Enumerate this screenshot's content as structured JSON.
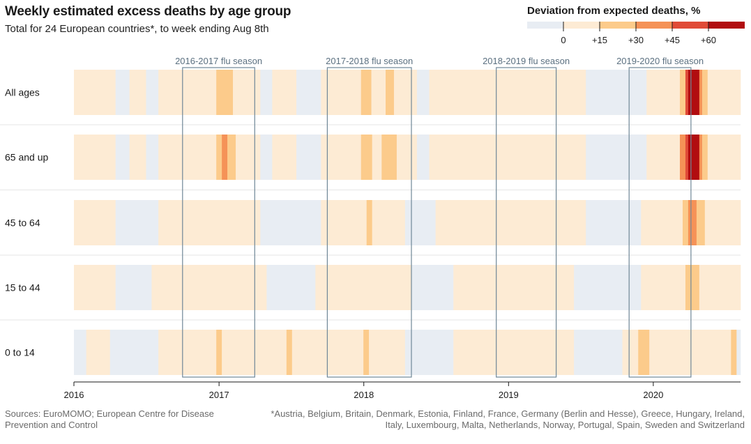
{
  "header": {
    "title": "Weekly estimated excess deaths by age group",
    "subtitle": "Total for 24 European countries*, to week ending Aug 8th"
  },
  "legend": {
    "title": "Deviation from expected deaths, %",
    "ticks": [
      "0",
      "+15",
      "+30",
      "+45",
      "+60"
    ],
    "bins": [
      {
        "from": null,
        "to": 0,
        "color": "#e8edf3"
      },
      {
        "from": 0,
        "to": 15,
        "color": "#fdebd4"
      },
      {
        "from": 15,
        "to": 30,
        "color": "#fccb8b"
      },
      {
        "from": 30,
        "to": 45,
        "color": "#f59257"
      },
      {
        "from": 45,
        "to": 60,
        "color": "#e04b38"
      },
      {
        "from": 60,
        "to": null,
        "color": "#b10d10"
      }
    ]
  },
  "footer": {
    "sources": "Sources: EuroMOMO; European Centre for Disease Prevention and Control",
    "note": "*Austria, Belgium, Britain, Denmark, Estonia, Finland, France, Germany (Berlin and Hesse), Greece, Hungary, Ireland, Italy, Luxembourg, Malta, Netherlands, Norway, Portugal, Spain, Sweden and Switzerland"
  },
  "chart_data": {
    "type": "heatmap",
    "title": "Weekly estimated excess deaths by age group",
    "x_axis": {
      "type": "date",
      "range": [
        "2016-01-01",
        "2020-08-08"
      ],
      "ticks": [
        "2016",
        "2017",
        "2018",
        "2019",
        "2020"
      ]
    },
    "rows": [
      "All ages",
      "65 and up",
      "45 to 64",
      "15 to 44",
      "0 to 14"
    ],
    "flu_seasons": [
      {
        "label": "2016-2017 flu season",
        "start": "2016-10-01",
        "end": "2017-04-01"
      },
      {
        "label": "2017-2018 flu season",
        "start": "2017-10-01",
        "end": "2018-05-01"
      },
      {
        "label": "2018-2019 flu season",
        "start": "2018-12-01",
        "end": "2019-05-01"
      },
      {
        "label": "2019-2020 flu season",
        "start": "2019-11-01",
        "end": "2020-04-05"
      }
    ],
    "series": [
      {
        "name": "All ages",
        "segments": [
          {
            "start": "2016-01-01",
            "end": "2016-04-15",
            "deviation_pct": 5
          },
          {
            "start": "2016-04-15",
            "end": "2016-05-20",
            "deviation_pct": -3
          },
          {
            "start": "2016-05-20",
            "end": "2016-07-01",
            "deviation_pct": 5
          },
          {
            "start": "2016-07-01",
            "end": "2016-08-01",
            "deviation_pct": -3
          },
          {
            "start": "2016-08-01",
            "end": "2016-12-25",
            "deviation_pct": 5
          },
          {
            "start": "2016-12-25",
            "end": "2017-02-05",
            "deviation_pct": 20
          },
          {
            "start": "2017-02-05",
            "end": "2017-04-15",
            "deviation_pct": 5
          },
          {
            "start": "2017-04-15",
            "end": "2017-05-15",
            "deviation_pct": -3
          },
          {
            "start": "2017-05-15",
            "end": "2017-07-15",
            "deviation_pct": 5
          },
          {
            "start": "2017-07-15",
            "end": "2017-09-15",
            "deviation_pct": -2
          },
          {
            "start": "2017-09-15",
            "end": "2017-12-25",
            "deviation_pct": 5
          },
          {
            "start": "2017-12-25",
            "end": "2018-01-20",
            "deviation_pct": 20
          },
          {
            "start": "2018-01-20",
            "end": "2018-02-25",
            "deviation_pct": 5
          },
          {
            "start": "2018-02-25",
            "end": "2018-03-18",
            "deviation_pct": 20
          },
          {
            "start": "2018-03-18",
            "end": "2018-05-15",
            "deviation_pct": 5
          },
          {
            "start": "2018-05-15",
            "end": "2018-06-15",
            "deviation_pct": -3
          },
          {
            "start": "2018-06-15",
            "end": "2019-07-15",
            "deviation_pct": 5
          },
          {
            "start": "2019-07-15",
            "end": "2019-10-20",
            "deviation_pct": -2
          },
          {
            "start": "2019-10-20",
            "end": "2019-12-15",
            "deviation_pct": -3
          },
          {
            "start": "2019-12-15",
            "end": "2020-03-08",
            "deviation_pct": 5
          },
          {
            "start": "2020-03-08",
            "end": "2020-03-22",
            "deviation_pct": 25
          },
          {
            "start": "2020-03-22",
            "end": "2020-03-29",
            "deviation_pct": 50
          },
          {
            "start": "2020-03-29",
            "end": "2020-04-26",
            "deviation_pct": 70
          },
          {
            "start": "2020-04-26",
            "end": "2020-05-03",
            "deviation_pct": 40
          },
          {
            "start": "2020-05-03",
            "end": "2020-05-17",
            "deviation_pct": 20
          },
          {
            "start": "2020-05-17",
            "end": "2020-08-08",
            "deviation_pct": 5
          }
        ]
      },
      {
        "name": "65 and up",
        "segments": [
          {
            "start": "2016-01-01",
            "end": "2016-04-15",
            "deviation_pct": 5
          },
          {
            "start": "2016-04-15",
            "end": "2016-05-20",
            "deviation_pct": -3
          },
          {
            "start": "2016-05-20",
            "end": "2016-07-01",
            "deviation_pct": 5
          },
          {
            "start": "2016-07-01",
            "end": "2016-08-01",
            "deviation_pct": -3
          },
          {
            "start": "2016-08-01",
            "end": "2016-12-25",
            "deviation_pct": 5
          },
          {
            "start": "2016-12-25",
            "end": "2017-01-08",
            "deviation_pct": 25
          },
          {
            "start": "2017-01-08",
            "end": "2017-01-22",
            "deviation_pct": 35
          },
          {
            "start": "2017-01-22",
            "end": "2017-02-12",
            "deviation_pct": 25
          },
          {
            "start": "2017-02-12",
            "end": "2017-04-15",
            "deviation_pct": 5
          },
          {
            "start": "2017-04-15",
            "end": "2017-05-15",
            "deviation_pct": -3
          },
          {
            "start": "2017-05-15",
            "end": "2017-07-15",
            "deviation_pct": 5
          },
          {
            "start": "2017-07-15",
            "end": "2017-09-15",
            "deviation_pct": -2
          },
          {
            "start": "2017-09-15",
            "end": "2017-12-25",
            "deviation_pct": 5
          },
          {
            "start": "2017-12-25",
            "end": "2018-01-22",
            "deviation_pct": 20
          },
          {
            "start": "2018-01-22",
            "end": "2018-02-15",
            "deviation_pct": 5
          },
          {
            "start": "2018-02-15",
            "end": "2018-03-25",
            "deviation_pct": 20
          },
          {
            "start": "2018-03-25",
            "end": "2018-05-15",
            "deviation_pct": 5
          },
          {
            "start": "2018-05-15",
            "end": "2018-06-15",
            "deviation_pct": -3
          },
          {
            "start": "2018-06-15",
            "end": "2019-07-15",
            "deviation_pct": 5
          },
          {
            "start": "2019-07-15",
            "end": "2019-10-20",
            "deviation_pct": -2
          },
          {
            "start": "2019-10-20",
            "end": "2019-12-15",
            "deviation_pct": -3
          },
          {
            "start": "2019-12-15",
            "end": "2020-03-08",
            "deviation_pct": 5
          },
          {
            "start": "2020-03-08",
            "end": "2020-03-22",
            "deviation_pct": 30
          },
          {
            "start": "2020-03-22",
            "end": "2020-03-29",
            "deviation_pct": 55
          },
          {
            "start": "2020-03-29",
            "end": "2020-04-26",
            "deviation_pct": 75
          },
          {
            "start": "2020-04-26",
            "end": "2020-05-03",
            "deviation_pct": 40
          },
          {
            "start": "2020-05-03",
            "end": "2020-05-17",
            "deviation_pct": 20
          },
          {
            "start": "2020-05-17",
            "end": "2020-08-08",
            "deviation_pct": 5
          }
        ]
      },
      {
        "name": "45 to 64",
        "segments": [
          {
            "start": "2016-01-01",
            "end": "2016-04-15",
            "deviation_pct": 5
          },
          {
            "start": "2016-04-15",
            "end": "2016-08-01",
            "deviation_pct": -2
          },
          {
            "start": "2016-08-01",
            "end": "2017-04-15",
            "deviation_pct": 5
          },
          {
            "start": "2017-04-15",
            "end": "2017-09-15",
            "deviation_pct": -2
          },
          {
            "start": "2017-09-15",
            "end": "2018-01-08",
            "deviation_pct": 5
          },
          {
            "start": "2018-01-08",
            "end": "2018-01-22",
            "deviation_pct": 20
          },
          {
            "start": "2018-01-22",
            "end": "2018-04-15",
            "deviation_pct": 5
          },
          {
            "start": "2018-04-15",
            "end": "2018-07-01",
            "deviation_pct": -2
          },
          {
            "start": "2018-07-01",
            "end": "2019-07-15",
            "deviation_pct": 5
          },
          {
            "start": "2019-07-15",
            "end": "2019-12-01",
            "deviation_pct": -2
          },
          {
            "start": "2019-12-01",
            "end": "2020-03-15",
            "deviation_pct": 5
          },
          {
            "start": "2020-03-15",
            "end": "2020-03-29",
            "deviation_pct": 20
          },
          {
            "start": "2020-03-29",
            "end": "2020-04-19",
            "deviation_pct": 40
          },
          {
            "start": "2020-04-19",
            "end": "2020-05-10",
            "deviation_pct": 20
          },
          {
            "start": "2020-05-10",
            "end": "2020-08-08",
            "deviation_pct": 5
          }
        ]
      },
      {
        "name": "15 to 44",
        "segments": [
          {
            "start": "2016-01-01",
            "end": "2016-04-15",
            "deviation_pct": 5
          },
          {
            "start": "2016-04-15",
            "end": "2016-07-15",
            "deviation_pct": -2
          },
          {
            "start": "2016-07-15",
            "end": "2017-05-01",
            "deviation_pct": 5
          },
          {
            "start": "2017-05-01",
            "end": "2017-09-01",
            "deviation_pct": -2
          },
          {
            "start": "2017-09-01",
            "end": "2018-05-01",
            "deviation_pct": 5
          },
          {
            "start": "2018-05-01",
            "end": "2018-08-15",
            "deviation_pct": -2
          },
          {
            "start": "2018-08-15",
            "end": "2019-06-15",
            "deviation_pct": 5
          },
          {
            "start": "2019-06-15",
            "end": "2019-12-01",
            "deviation_pct": -2
          },
          {
            "start": "2019-12-01",
            "end": "2020-03-22",
            "deviation_pct": 5
          },
          {
            "start": "2020-03-22",
            "end": "2020-04-26",
            "deviation_pct": 20
          },
          {
            "start": "2020-04-26",
            "end": "2020-08-08",
            "deviation_pct": 5
          }
        ]
      },
      {
        "name": "0 to 14",
        "segments": [
          {
            "start": "2016-01-01",
            "end": "2016-02-01",
            "deviation_pct": -2
          },
          {
            "start": "2016-02-01",
            "end": "2016-04-01",
            "deviation_pct": 5
          },
          {
            "start": "2016-04-01",
            "end": "2016-08-01",
            "deviation_pct": -2
          },
          {
            "start": "2016-08-01",
            "end": "2016-12-25",
            "deviation_pct": 5
          },
          {
            "start": "2016-12-25",
            "end": "2017-01-08",
            "deviation_pct": 20
          },
          {
            "start": "2017-01-08",
            "end": "2017-06-20",
            "deviation_pct": 5
          },
          {
            "start": "2017-06-20",
            "end": "2017-07-04",
            "deviation_pct": 20
          },
          {
            "start": "2017-07-04",
            "end": "2017-12-31",
            "deviation_pct": 5
          },
          {
            "start": "2017-12-31",
            "end": "2018-01-14",
            "deviation_pct": 20
          },
          {
            "start": "2018-01-14",
            "end": "2018-04-15",
            "deviation_pct": 5
          },
          {
            "start": "2018-04-15",
            "end": "2018-08-15",
            "deviation_pct": -2
          },
          {
            "start": "2018-08-15",
            "end": "2019-06-15",
            "deviation_pct": 5
          },
          {
            "start": "2019-06-15",
            "end": "2019-10-15",
            "deviation_pct": -2
          },
          {
            "start": "2019-10-15",
            "end": "2019-11-24",
            "deviation_pct": 5
          },
          {
            "start": "2019-11-24",
            "end": "2019-12-22",
            "deviation_pct": 20
          },
          {
            "start": "2019-12-22",
            "end": "2020-07-15",
            "deviation_pct": 5
          },
          {
            "start": "2020-07-15",
            "end": "2020-07-29",
            "deviation_pct": 20
          },
          {
            "start": "2020-07-29",
            "end": "2020-08-08",
            "deviation_pct": -2
          }
        ]
      }
    ]
  }
}
